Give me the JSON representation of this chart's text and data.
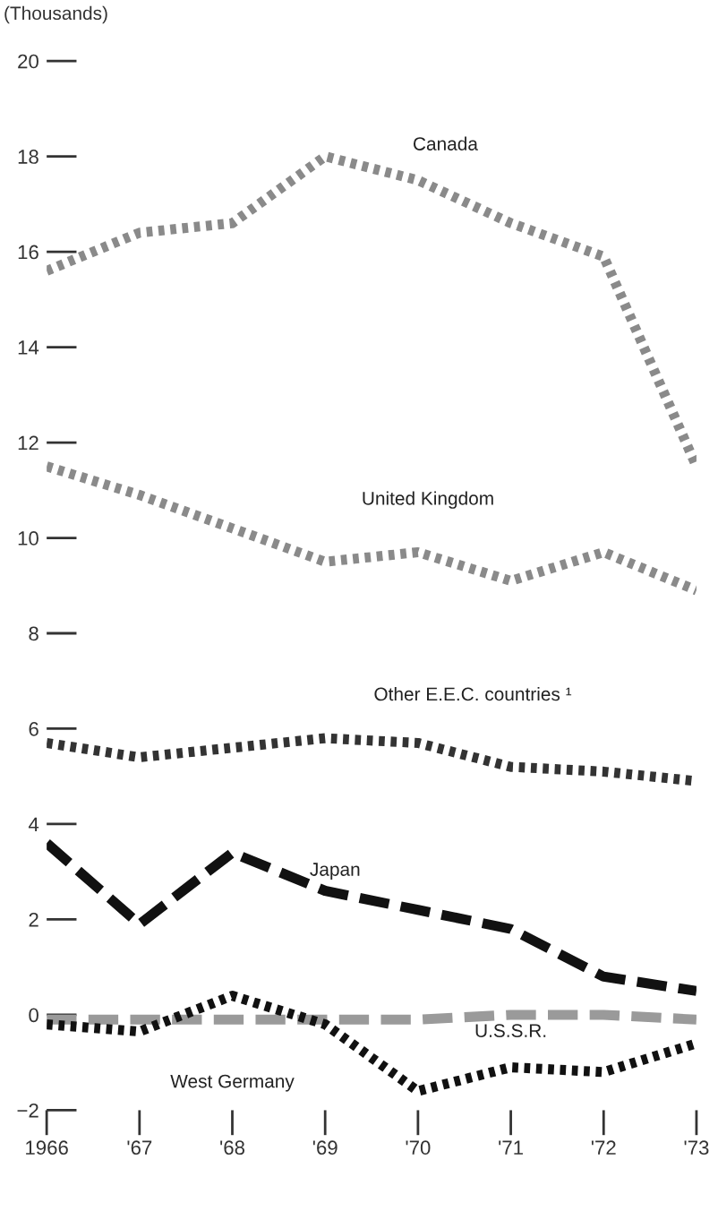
{
  "chart_data": {
    "type": "line",
    "ylabel": "(Thousands)",
    "x": [
      1966,
      1967,
      1968,
      1969,
      1970,
      1971,
      1972,
      1973
    ],
    "xlim": [
      1966,
      1973
    ],
    "xticks": [
      1966,
      {
        "value": 1967,
        "label": "'67"
      },
      {
        "value": 1968,
        "label": "'68"
      },
      {
        "value": 1969,
        "label": "'69"
      },
      {
        "value": 1970,
        "label": "'70"
      },
      {
        "value": 1971,
        "label": "'71"
      },
      {
        "value": 1972,
        "label": "'72"
      },
      {
        "value": 1973,
        "label": "'73"
      }
    ],
    "ylim": [
      -2,
      20
    ],
    "yticks": [
      {
        "value": -2,
        "label": "−2"
      },
      0,
      2,
      4,
      6,
      8,
      10,
      12,
      14,
      16,
      18,
      20
    ],
    "grid": false,
    "legend": false,
    "marker": "none",
    "series": [
      {
        "name": "Canada",
        "color": "#8a8a8a",
        "line_style": "dotted",
        "values": [
          15.6,
          16.4,
          16.6,
          18.0,
          17.5,
          16.6,
          15.9,
          11.5
        ]
      },
      {
        "name": "United Kingdom",
        "color": "#8a8a8a",
        "line_style": "dotted",
        "values": [
          11.5,
          10.9,
          10.2,
          9.5,
          9.7,
          9.1,
          9.7,
          8.9
        ]
      },
      {
        "name": "Other E.E.C. countries ¹",
        "color": "#333333",
        "line_style": "dotted",
        "values": [
          5.7,
          5.4,
          5.6,
          5.8,
          5.7,
          5.2,
          5.1,
          4.9
        ]
      },
      {
        "name": "Japan",
        "color": "#111111",
        "line_style": "dashed",
        "values": [
          3.6,
          1.9,
          3.4,
          2.6,
          2.2,
          1.8,
          0.8,
          0.5
        ]
      },
      {
        "name": "U.S.S.R.",
        "color": "#9a9a9a",
        "line_style": "dashed",
        "values": [
          -0.1,
          -0.1,
          -0.1,
          -0.1,
          -0.1,
          0,
          0,
          -0.1
        ]
      },
      {
        "name": "West Germany",
        "color": "#111111",
        "line_style": "dotted",
        "values": [
          -0.2,
          -0.35,
          0.4,
          -0.2,
          -1.6,
          -1.1,
          -1.2,
          -0.6
        ]
      }
    ]
  }
}
